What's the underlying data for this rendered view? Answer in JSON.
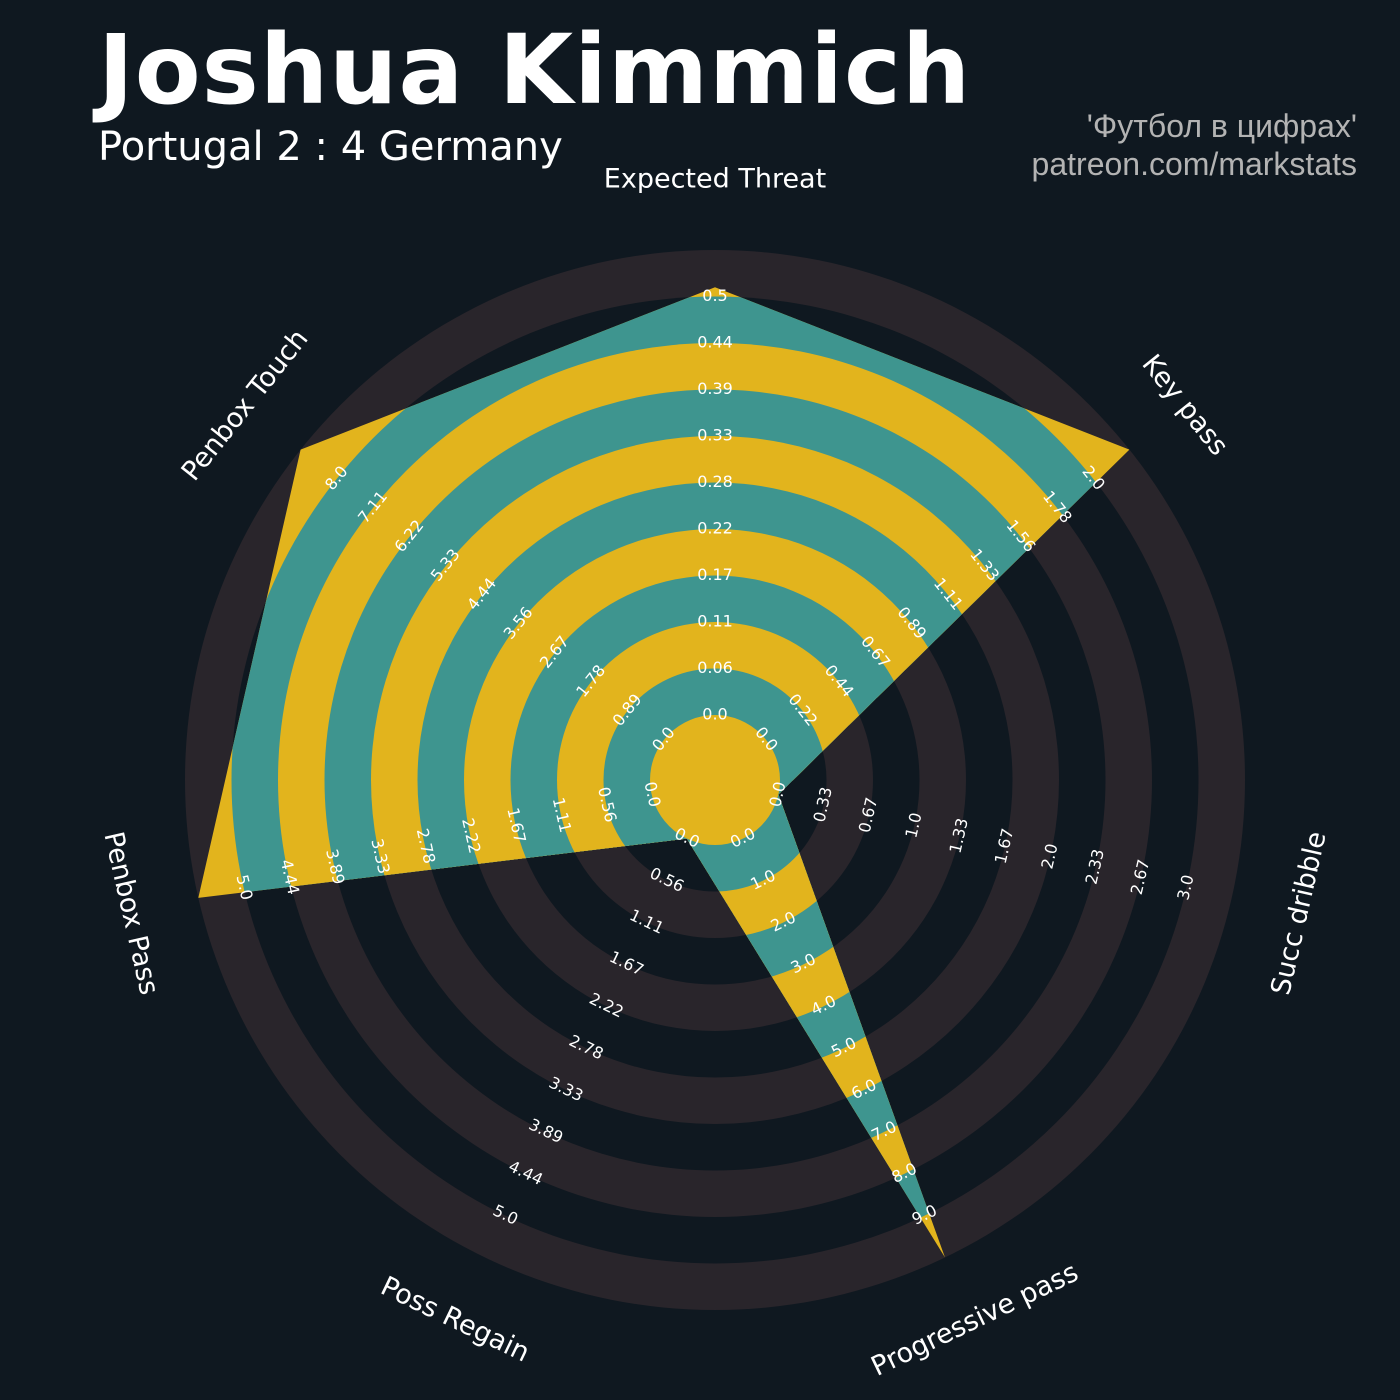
{
  "header": {
    "title": "Joshua Kimmich",
    "subtitle": "Portugal 2 : 4 Germany",
    "credit_line1": "'Футбол в цифрах'",
    "credit_line2": "patreon.com/markstats"
  },
  "colors": {
    "background": "#0f1820",
    "ring_band": "#29252b",
    "polygon_teal": "#3e958f",
    "polygon_gold": "#e2b41d",
    "label_text": "#ffffff",
    "credit_text": "#b3b3b3"
  },
  "chart_data": {
    "type": "radar",
    "ring_count": 10,
    "axes": [
      {
        "name": "Expected Threat",
        "value": 0.46,
        "max": 0.5,
        "ticks": [
          "0.0",
          "0.06",
          "0.11",
          "0.17",
          "0.22",
          "0.28",
          "0.33",
          "0.39",
          "0.44",
          "0.5"
        ]
      },
      {
        "name": "Key pass",
        "value": 2.0,
        "max": 2.0,
        "ticks": [
          "0.0",
          "0.22",
          "0.44",
          "0.67",
          "0.89",
          "1.11",
          "1.33",
          "1.56",
          "1.78",
          "2.0"
        ]
      },
      {
        "name": "Succ dribble",
        "value": 0.0,
        "max": 3.0,
        "ticks": [
          "0.0",
          "0.33",
          "0.67",
          "1.0",
          "1.33",
          "1.67",
          "2.0",
          "2.33",
          "2.67",
          "3.0"
        ]
      },
      {
        "name": "Progressive pass",
        "value": 9.0,
        "max": 9.0,
        "ticks": [
          "0.0",
          "1.0",
          "2.0",
          "3.0",
          "4.0",
          "5.0",
          "6.0",
          "7.0",
          "8.0",
          "9.0"
        ]
      },
      {
        "name": "Poss Regain",
        "value": 0.0,
        "max": 5.0,
        "ticks": [
          "0.0",
          "0.56",
          "1.11",
          "1.67",
          "2.22",
          "2.78",
          "3.33",
          "3.89",
          "4.44",
          "5.0"
        ]
      },
      {
        "name": "Penbox Pass",
        "value": 5.0,
        "max": 5.0,
        "ticks": [
          "0.0",
          "0.56",
          "1.11",
          "1.67",
          "2.22",
          "2.78",
          "3.33",
          "3.89",
          "4.44",
          "5.0"
        ]
      },
      {
        "name": "Penbox Touch",
        "value": 8.0,
        "max": 8.0,
        "ticks": [
          "0.0",
          "0.89",
          "1.78",
          "2.67",
          "3.56",
          "4.44",
          "5.33",
          "6.22",
          "7.11",
          "8.0"
        ]
      }
    ]
  }
}
